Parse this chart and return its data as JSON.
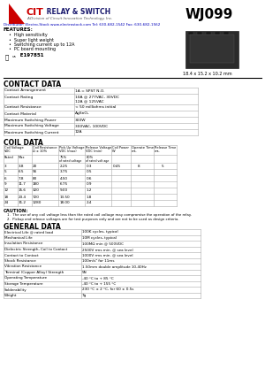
{
  "title": "WJ099",
  "distributor": "Distributor: Electro-Stock www.electrostock.com Tel: 630-682-1542 Fax: 630-682-1562",
  "features": [
    "High sensitivity",
    "Super light weight",
    "Switching current up to 12A",
    "PC board mounting"
  ],
  "ul_text": "E197851",
  "dimensions": "18.4 x 15.2 x 10.2 mm",
  "contact_rows": [
    [
      "Contact Arrangement",
      "1A = SPST N.O."
    ],
    [
      "Contact Rating",
      "10A @ 277VAC, 30VDC\n12A @ 125VAC"
    ],
    [
      "Contact Resistance",
      "< 50 milliohms initial"
    ],
    [
      "Contact Material",
      "AgSnO₂"
    ],
    [
      "Maximum Switching Power",
      "300W"
    ],
    [
      "Maximum Switching Voltage",
      "300VAC, 100VDC"
    ],
    [
      "Maximum Switching Current",
      "12A"
    ]
  ],
  "coil_rows": [
    [
      "3",
      "3.8",
      "20",
      "2.25",
      "0.3"
    ],
    [
      "5",
      "6.5",
      "56",
      "3.75",
      "0.5"
    ],
    [
      "6",
      "7.8",
      "80",
      "4.50",
      "0.6"
    ],
    [
      "9",
      "11.7",
      "180",
      "6.75",
      "0.9"
    ],
    [
      "12",
      "15.6",
      "320",
      "9.00",
      "1.2"
    ],
    [
      "18",
      "23.4",
      "720",
      "13.50",
      "1.8"
    ],
    [
      "24",
      "31.2",
      "1280",
      "18.00",
      "2.4"
    ]
  ],
  "general_rows": [
    [
      "Electrical Life @ rated load",
      "100K cycles, typical"
    ],
    [
      "Mechanical Life",
      "10M cycles, typical"
    ],
    [
      "Insulation Resistance",
      "100MΩ min @ 500VDC"
    ],
    [
      "Dielectric Strength, Coil to Contact",
      "2500V rms min. @ sea level"
    ],
    [
      "Contact to Contact",
      "1000V rms min. @ sea level"
    ],
    [
      "Shock Resistance",
      "100m/s² for 11ms"
    ],
    [
      "Vibration Resistance",
      "1.50mm double amplitude 10-40Hz"
    ],
    [
      "Terminal (Copper Alloy) Strength",
      "5N"
    ],
    [
      "Operating Temperature",
      "-40 °C to + 85 °C"
    ],
    [
      "Storage Temperature",
      "-40 °C to + 155 °C"
    ],
    [
      "Solderability",
      "230 °C ± 2 °C, for 60 ± 0.5s"
    ],
    [
      "Weight",
      "7g"
    ]
  ]
}
